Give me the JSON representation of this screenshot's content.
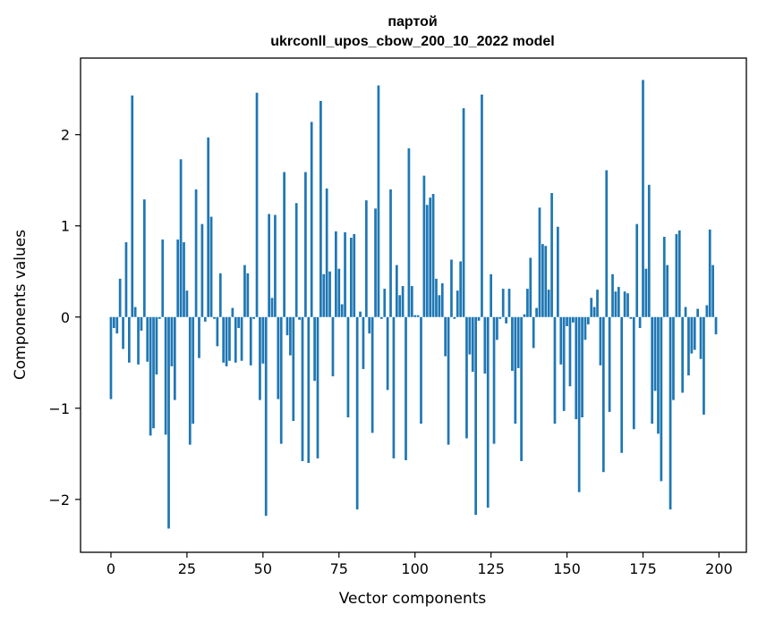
{
  "chart_data": {
    "type": "bar",
    "title": "партой",
    "subtitle": "ukrconll_upos_cbow_200_10_2022 model",
    "xlabel": "Vector components",
    "ylabel": "Components values",
    "xlim": [
      -10,
      209
    ],
    "ylim": [
      -2.58,
      2.84
    ],
    "xticks": [
      0,
      25,
      50,
      75,
      100,
      125,
      150,
      175,
      200
    ],
    "yticks": [
      -2,
      -1,
      0,
      1,
      2
    ],
    "ytick_labels": [
      "−2",
      "−1",
      "0",
      "1",
      "2"
    ],
    "grid": false,
    "bar_color": "#1f77b4",
    "values": [
      -0.9,
      -0.12,
      -0.18,
      0.42,
      -0.35,
      0.82,
      -0.5,
      2.43,
      0.11,
      -0.52,
      -0.15,
      1.29,
      -0.49,
      -1.3,
      -1.22,
      -0.63,
      -0.02,
      0.85,
      -1.29,
      -2.32,
      -0.54,
      -0.91,
      0.85,
      1.73,
      0.82,
      0.29,
      -1.4,
      -1.17,
      1.4,
      -0.45,
      1.02,
      -0.05,
      1.97,
      1.1,
      -0.02,
      -0.32,
      0.48,
      -0.5,
      -0.54,
      -0.48,
      0.1,
      -0.5,
      -0.12,
      -0.48,
      0.57,
      0.48,
      -0.53,
      -0.02,
      2.46,
      -0.91,
      -0.51,
      -2.18,
      1.13,
      0.21,
      1.12,
      -0.9,
      -1.39,
      1.59,
      -0.2,
      -0.42,
      -1.14,
      1.25,
      -0.03,
      -1.58,
      1.59,
      -1.6,
      2.14,
      -0.7,
      -1.55,
      2.37,
      0.47,
      1.41,
      0.5,
      -0.65,
      0.94,
      0.53,
      0.14,
      0.93,
      -1.1,
      0.87,
      0.91,
      -2.11,
      0.06,
      -0.57,
      1.28,
      -0.18,
      -1.27,
      1.19,
      2.54,
      -0.02,
      0.31,
      -0.8,
      1.4,
      -1.55,
      0.57,
      0.24,
      0.34,
      -1.57,
      1.85,
      0.34,
      0.02,
      0.02,
      -1.17,
      1.55,
      1.23,
      1.31,
      1.35,
      0.42,
      0.24,
      0.37,
      -0.43,
      -1.4,
      0.63,
      -0.02,
      0.29,
      0.61,
      2.29,
      -1.33,
      -0.41,
      -0.6,
      -2.17,
      -0.04,
      2.44,
      -0.62,
      -2.09,
      0.47,
      -1.39,
      -0.25,
      -0.02,
      0.31,
      -0.07,
      0.31,
      -0.59,
      -1.17,
      -0.56,
      -1.58,
      0.03,
      0.31,
      0.65,
      -0.34,
      0.1,
      1.2,
      0.8,
      0.78,
      0.3,
      1.36,
      -1.17,
      0.99,
      -0.52,
      -1.03,
      -0.1,
      -0.76,
      -0.06,
      -1.12,
      -1.92,
      -1.1,
      -0.25,
      -0.08,
      0.21,
      0.11,
      0.3,
      -0.53,
      -1.7,
      1.61,
      -1.04,
      0.47,
      0.28,
      0.33,
      -1.49,
      0.28,
      0.26,
      -0.02,
      -1.23,
      1.02,
      -0.12,
      2.6,
      0.53,
      1.45,
      -1.17,
      -0.81,
      -1.28,
      -1.8,
      0.88,
      0.57,
      -2.11,
      -0.91,
      0.91,
      0.95,
      -0.83,
      0.11,
      -0.64,
      -0.4,
      -0.36,
      0.09,
      -0.46,
      -1.07,
      0.13,
      0.96,
      0.57,
      -0.19
    ]
  }
}
